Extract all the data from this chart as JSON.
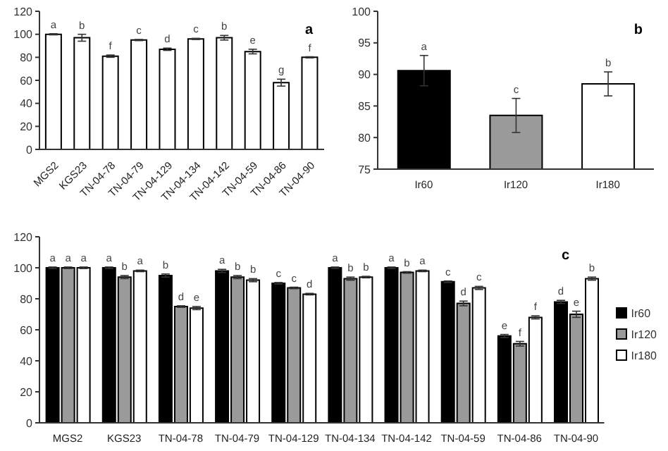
{
  "chart_data": [
    {
      "type": "bar",
      "annotations": [
        "a"
      ],
      "categories": [
        "MGS2",
        "KGS23",
        "TN-04-78",
        "TN-04-79",
        "TN-04-129",
        "TN-04-134",
        "TN-04-142",
        "TN-04-59",
        "TN-04-86",
        "TN-04-90"
      ],
      "series": [
        {
          "color": "#ffffff",
          "values": [
            100,
            97,
            81,
            95,
            87,
            96,
            97,
            85,
            58,
            80
          ],
          "errors": [
            0.5,
            3,
            1,
            0.5,
            1,
            0.5,
            2,
            2,
            3,
            0.5
          ],
          "value_labels": [
            "a",
            "b",
            "f",
            "c",
            "d",
            "c",
            "b",
            "e",
            "g",
            "f"
          ]
        }
      ],
      "ylim": [
        0,
        120
      ],
      "yticks": [
        0,
        20,
        40,
        60,
        80,
        100,
        120
      ],
      "grid": false,
      "legend": false
    },
    {
      "type": "bar",
      "annotations": [
        "b"
      ],
      "categories": [
        "Ir60",
        "Ir120",
        "Ir180"
      ],
      "series": [
        {
          "colors": [
            "#000000",
            "#9a9a9a",
            "#ffffff"
          ],
          "values": [
            90.6,
            83.5,
            88.5
          ],
          "errors": [
            2.4,
            2.7,
            1.9
          ],
          "value_labels": [
            "a",
            "c",
            "b"
          ]
        }
      ],
      "ylim": [
        75,
        100
      ],
      "yticks": [
        75,
        80,
        85,
        90,
        95,
        100
      ],
      "grid": false,
      "legend": false
    },
    {
      "type": "bar",
      "annotations": [
        "c"
      ],
      "categories": [
        "MGS2",
        "KGS23",
        "TN-04-78",
        "TN-04-79",
        "TN-04-129",
        "TN-04-134",
        "TN-04-142",
        "TN-04-59",
        "TN-04-86",
        "TN-04-90"
      ],
      "series": [
        {
          "name": "Ir60",
          "color": "#000000",
          "values": [
            100,
            100,
            95,
            98,
            90,
            100,
            100,
            91,
            56,
            78
          ],
          "errors": [
            0.5,
            0.5,
            1,
            1,
            0.5,
            0.5,
            0.5,
            0.5,
            1,
            1
          ],
          "value_labels": [
            "a",
            "a",
            "b",
            "a",
            "c",
            "a",
            "a",
            "c",
            "e",
            "d"
          ]
        },
        {
          "name": "Ir120",
          "color": "#9a9a9a",
          "values": [
            100,
            94,
            75,
            94,
            87,
            93,
            97,
            77,
            51,
            70
          ],
          "errors": [
            0.5,
            1,
            0.5,
            1,
            0.5,
            1,
            0.5,
            1.5,
            1.5,
            2
          ],
          "value_labels": [
            "a",
            "b",
            "d",
            "b",
            "c",
            "b",
            "b",
            "d",
            "f",
            "e"
          ]
        },
        {
          "name": "Ir180",
          "color": "#ffffff",
          "values": [
            100,
            98,
            74,
            92,
            83,
            94,
            98,
            87,
            68,
            93
          ],
          "errors": [
            0.5,
            0.5,
            1,
            1,
            0.5,
            0.5,
            0.5,
            1,
            1,
            1
          ],
          "value_labels": [
            "a",
            "a",
            "e",
            "b",
            "d",
            "b",
            "a",
            "c",
            "f",
            "b"
          ]
        }
      ],
      "ylim": [
        0,
        120
      ],
      "yticks": [
        0,
        20,
        40,
        60,
        80,
        100,
        120
      ],
      "grid": false,
      "legend": "right"
    }
  ]
}
